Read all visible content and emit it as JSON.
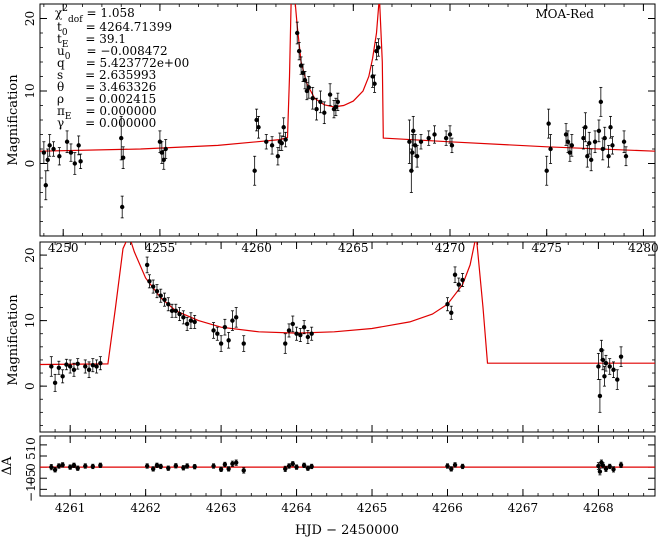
{
  "chart_data": [
    {
      "type": "scatter",
      "panel": "top",
      "title": "MOA-Red",
      "ylabel": "Magnification",
      "xlabel": "",
      "xlim": [
        4248.8,
        4280.6
      ],
      "ylim": [
        -10,
        22
      ],
      "xticks": [
        4250,
        4255,
        4260,
        4265,
        4270,
        4275,
        4280
      ],
      "yticks": [
        0,
        10,
        20
      ],
      "params": [
        {
          "name": "χ²/dof",
          "value": "1.058"
        },
        {
          "name": "t0",
          "value": "4264.71399"
        },
        {
          "name": "tE",
          "value": "39.1"
        },
        {
          "name": "u0",
          "value": "−0.008472"
        },
        {
          "name": "q",
          "value": "5.423772e+00"
        },
        {
          "name": "s",
          "value": "2.635993"
        },
        {
          "name": "θ",
          "value": "3.463326"
        },
        {
          "name": "ρ",
          "value": "0.002415"
        },
        {
          "name": "πE",
          "value": "0.000000"
        },
        {
          "name": "γ",
          "value": "0.000000"
        }
      ],
      "param_text": {
        "p0_sym": "χ",
        "p0_sup": "2",
        "p0_sub": "dof",
        "p0_val": "= 1.058",
        "p1_sym": "t",
        "p1_sub": "0",
        "p1_val": "= 4264.71399",
        "p2_sym": "t",
        "p2_sub": "E",
        "p2_val": "= 39.1",
        "p3_sym": "u",
        "p3_sub": "0",
        "p3_val": "= −0.008472",
        "p4_sym": "q",
        "p4_val": "= 5.423772e+00",
        "p5_sym": "s",
        "p5_val": "= 2.635993",
        "p6_sym": "θ",
        "p6_val": "= 3.463326",
        "p7_sym": "ρ",
        "p7_val": "= 0.002415",
        "p8_sym": "π",
        "p8_sub": "E",
        "p8_val": "= 0.000000",
        "p9_sym": "γ",
        "p9_val": "= 0.000000"
      },
      "model": [
        [
          4248.8,
          1.7
        ],
        [
          4254,
          2.0
        ],
        [
          4258,
          2.5
        ],
        [
          4260,
          3.0
        ],
        [
          4261.2,
          3.3
        ],
        [
          4261.6,
          3.6
        ],
        [
          4261.7,
          12
        ],
        [
          4261.8,
          24
        ],
        [
          4262.0,
          22
        ],
        [
          4262.1,
          19
        ],
        [
          4262.3,
          14
        ],
        [
          4262.6,
          11
        ],
        [
          4263.0,
          9
        ],
        [
          4263.5,
          8.1
        ],
        [
          4264.0,
          7.8
        ],
        [
          4264.5,
          8.0
        ],
        [
          4265.0,
          8.6
        ],
        [
          4265.5,
          10.0
        ],
        [
          4265.8,
          12.0
        ],
        [
          4266.0,
          14.5
        ],
        [
          4266.2,
          18
        ],
        [
          4266.35,
          23
        ],
        [
          4266.5,
          14
        ],
        [
          4266.55,
          3.5
        ],
        [
          4270,
          3.0
        ],
        [
          4275,
          2.3
        ],
        [
          4280.6,
          1.7
        ]
      ],
      "points": [
        [
          4249.0,
          1.5,
          1.5
        ],
        [
          4249.1,
          -3,
          2
        ],
        [
          4249.2,
          0.5,
          1.5
        ],
        [
          4249.3,
          2.5,
          1.5
        ],
        [
          4249.5,
          2.0,
          1.0
        ],
        [
          4249.8,
          1.0,
          1.2
        ],
        [
          4250.2,
          3.0,
          1.5
        ],
        [
          4250.4,
          1.5,
          1.2
        ],
        [
          4250.6,
          0.0,
          1.5
        ],
        [
          4250.8,
          2.5,
          1.3
        ],
        [
          4250.9,
          0.3,
          1.0
        ],
        [
          4253.0,
          3.5,
          3.0
        ],
        [
          4253.05,
          -6,
          1.5
        ],
        [
          4253.1,
          0.8,
          1.5
        ],
        [
          4255.0,
          3.0,
          1.5
        ],
        [
          4255.1,
          1.5,
          1.5
        ],
        [
          4255.2,
          0.5,
          1.3
        ],
        [
          4255.3,
          2.0,
          1.3
        ],
        [
          4259.9,
          -1,
          2
        ],
        [
          4260.0,
          6.0,
          1.5
        ],
        [
          4260.1,
          5.0,
          1.5
        ],
        [
          4260.5,
          3.0,
          1.0
        ],
        [
          4260.8,
          2.5,
          1.2
        ],
        [
          4261.1,
          1.0,
          1.2
        ],
        [
          4261.2,
          3.0,
          1.2
        ],
        [
          4261.3,
          2.8,
          1.0
        ],
        [
          4261.4,
          5.0,
          1.3
        ],
        [
          4261.5,
          3.3,
          1.0
        ],
        [
          4262.1,
          18,
          1.5
        ],
        [
          4262.2,
          15.5,
          1.2
        ],
        [
          4262.3,
          13.5,
          1.2
        ],
        [
          4262.4,
          12.5,
          1.2
        ],
        [
          4262.5,
          11.5,
          1.2
        ],
        [
          4262.6,
          10.0,
          1.2
        ],
        [
          4262.7,
          10.5,
          1.5
        ],
        [
          4262.9,
          9.0,
          1.5
        ],
        [
          4263.1,
          7.5,
          1.5
        ],
        [
          4263.3,
          8.5,
          1.5
        ],
        [
          4263.5,
          7.0,
          1.5
        ],
        [
          4263.8,
          9.5,
          1.5
        ],
        [
          4264.0,
          7.5,
          1.2
        ],
        [
          4264.1,
          7.8,
          1.2
        ],
        [
          4264.2,
          8.5,
          1.2
        ],
        [
          4266.0,
          12,
          1.5
        ],
        [
          4266.1,
          11,
          1.2
        ],
        [
          4266.2,
          15.5,
          1.2
        ],
        [
          4266.3,
          16,
          1.2
        ],
        [
          4267.9,
          3.0,
          3.0
        ],
        [
          4268.0,
          -1,
          3
        ],
        [
          4268.05,
          1.5,
          2.5
        ],
        [
          4268.1,
          4.5,
          2.0
        ],
        [
          4268.2,
          2.5,
          1.5
        ],
        [
          4268.3,
          1.0,
          1.5
        ],
        [
          4268.5,
          3.0,
          1.0
        ],
        [
          4268.9,
          3.5,
          1.0
        ],
        [
          4269.2,
          4.0,
          1.2
        ],
        [
          4269.8,
          3.5,
          1.0
        ],
        [
          4270.0,
          4.0,
          1.2
        ],
        [
          4270.1,
          2.5,
          1.0
        ],
        [
          4275.0,
          -1,
          2
        ],
        [
          4275.1,
          5.5,
          2.0
        ],
        [
          4275.2,
          2.0,
          2.0
        ],
        [
          4276.0,
          4.0,
          1.5
        ],
        [
          4276.1,
          3.0,
          1.5
        ],
        [
          4276.2,
          1.5,
          1.2
        ],
        [
          4276.3,
          2.5,
          1.5
        ],
        [
          4276.9,
          3.5,
          1.5
        ],
        [
          4277.0,
          5.0,
          2.0
        ],
        [
          4277.1,
          1.0,
          1.5
        ],
        [
          4277.2,
          2.8,
          1.5
        ],
        [
          4277.3,
          0.5,
          1.5
        ],
        [
          4277.5,
          3.0,
          1.5
        ],
        [
          4277.7,
          4.5,
          1.5
        ],
        [
          4277.8,
          8.5,
          2.0
        ],
        [
          4277.9,
          2.0,
          1.5
        ],
        [
          4278.0,
          3.5,
          1.5
        ],
        [
          4278.2,
          1.0,
          1.5
        ],
        [
          4278.3,
          5.0,
          1.5
        ],
        [
          4278.4,
          2.5,
          1.2
        ],
        [
          4279.0,
          3.0,
          1.5
        ],
        [
          4279.1,
          1.0,
          1.3
        ]
      ]
    },
    {
      "type": "scatter",
      "panel": "middle",
      "ylabel": "Magnification",
      "xlabel": "",
      "xlim": [
        4260.6,
        4268.75
      ],
      "ylim": [
        -7,
        22
      ],
      "xticks": [
        4261,
        4262,
        4263,
        4264,
        4265,
        4266,
        4267,
        4268
      ],
      "yticks": [
        0,
        10,
        20
      ],
      "model": [
        [
          4260.6,
          3.3
        ],
        [
          4261.5,
          3.4
        ],
        [
          4261.6,
          12
        ],
        [
          4261.7,
          21
        ],
        [
          4261.78,
          23
        ],
        [
          4261.85,
          20.5
        ],
        [
          4262.0,
          16.5
        ],
        [
          4262.2,
          13.5
        ],
        [
          4262.4,
          11.5
        ],
        [
          4262.7,
          10.0
        ],
        [
          4263.0,
          9.0
        ],
        [
          4263.5,
          8.3
        ],
        [
          4264.0,
          8.1
        ],
        [
          4264.5,
          8.3
        ],
        [
          4265.0,
          8.8
        ],
        [
          4265.5,
          9.8
        ],
        [
          4265.8,
          11.0
        ],
        [
          4266.0,
          12.5
        ],
        [
          4266.2,
          15.5
        ],
        [
          4266.3,
          18.5
        ],
        [
          4266.38,
          23
        ],
        [
          4266.47,
          12
        ],
        [
          4266.53,
          3.5
        ],
        [
          4267.0,
          3.5
        ],
        [
          4268.75,
          3.5
        ]
      ],
      "points": [
        [
          4260.75,
          3.0,
          1.5
        ],
        [
          4260.8,
          0.5,
          1.3
        ],
        [
          4260.85,
          2.8,
          1.0
        ],
        [
          4260.9,
          1.5,
          1.0
        ],
        [
          4260.95,
          3.3,
          0.8
        ],
        [
          4261.0,
          3.0,
          1.0
        ],
        [
          4261.05,
          2.5,
          1.0
        ],
        [
          4261.1,
          3.4,
          0.8
        ],
        [
          4261.2,
          3.0,
          1.0
        ],
        [
          4261.25,
          2.5,
          1.2
        ],
        [
          4261.3,
          3.2,
          1.0
        ],
        [
          4261.35,
          3.0,
          1.0
        ],
        [
          4261.4,
          3.5,
          1.0
        ],
        [
          4262.02,
          18.5,
          1.2
        ],
        [
          4262.05,
          16.0,
          1.0
        ],
        [
          4262.1,
          15.2,
          1.0
        ],
        [
          4262.15,
          14.5,
          1.0
        ],
        [
          4262.2,
          13.8,
          1.0
        ],
        [
          4262.25,
          13.2,
          1.0
        ],
        [
          4262.3,
          12.5,
          1.0
        ],
        [
          4262.35,
          11.5,
          1.0
        ],
        [
          4262.4,
          11.5,
          1.0
        ],
        [
          4262.45,
          11.0,
          1.0
        ],
        [
          4262.5,
          10.5,
          1.0
        ],
        [
          4262.55,
          9.5,
          1.0
        ],
        [
          4262.6,
          10.0,
          1.2
        ],
        [
          4262.65,
          9.8,
          1.0
        ],
        [
          4262.9,
          8.5,
          1.2
        ],
        [
          4262.95,
          8.0,
          1.0
        ],
        [
          4263.0,
          6.5,
          1.2
        ],
        [
          4263.05,
          9.0,
          1.2
        ],
        [
          4263.1,
          7.0,
          1.2
        ],
        [
          4263.15,
          10.0,
          1.5
        ],
        [
          4263.2,
          10.5,
          1.5
        ],
        [
          4263.3,
          6.5,
          1.2
        ],
        [
          4263.85,
          6.5,
          1.5
        ],
        [
          4263.9,
          8.5,
          1.0
        ],
        [
          4263.95,
          9.5,
          1.2
        ],
        [
          4264.0,
          8.0,
          1.0
        ],
        [
          4264.05,
          7.8,
          1.0
        ],
        [
          4264.1,
          9.0,
          1.0
        ],
        [
          4264.15,
          7.5,
          1.0
        ],
        [
          4264.2,
          8.0,
          1.0
        ],
        [
          4266.0,
          12.5,
          1.0
        ],
        [
          4266.05,
          11.2,
          1.0
        ],
        [
          4266.1,
          17.0,
          1.2
        ],
        [
          4266.15,
          15.5,
          1.0
        ],
        [
          4266.2,
          16.2,
          1.0
        ],
        [
          4268.0,
          3.0,
          2.0
        ],
        [
          4268.02,
          -1.5,
          2.5
        ],
        [
          4268.04,
          5.5,
          1.5
        ],
        [
          4268.06,
          4.0,
          1.5
        ],
        [
          4268.08,
          1.5,
          1.5
        ],
        [
          4268.1,
          3.5,
          1.2
        ],
        [
          4268.15,
          3.0,
          1.2
        ],
        [
          4268.2,
          2.5,
          1.2
        ],
        [
          4268.25,
          1.0,
          1.5
        ],
        [
          4268.3,
          4.5,
          1.5
        ]
      ]
    },
    {
      "type": "scatter",
      "panel": "residuals",
      "ylabel": "ΔA",
      "xlabel": "HJD − 2450000",
      "xlim": [
        4260.6,
        4268.75
      ],
      "ylim": [
        -13,
        14
      ],
      "xticks": [
        4261,
        4262,
        4263,
        4264,
        4265,
        4266,
        4267,
        4268
      ],
      "yticks": [
        -10,
        -5,
        0,
        5,
        10
      ],
      "ytick_labels": [
        "−10",
        "−5",
        "0",
        "5",
        "10"
      ],
      "model": [
        [
          4260.6,
          0
        ],
        [
          4268.75,
          0
        ]
      ],
      "points": [
        [
          4260.75,
          0.0,
          1.2
        ],
        [
          4260.8,
          -1.2,
          1.0
        ],
        [
          4260.85,
          0.5,
          1.0
        ],
        [
          4260.9,
          1.0,
          1.0
        ],
        [
          4261.0,
          0.0,
          1.0
        ],
        [
          4261.05,
          0.8,
          1.0
        ],
        [
          4261.1,
          -0.5,
          1.0
        ],
        [
          4261.2,
          0.5,
          1.0
        ],
        [
          4261.3,
          0.3,
          1.0
        ],
        [
          4261.4,
          0.8,
          1.0
        ],
        [
          4262.02,
          0.5,
          1.0
        ],
        [
          4262.1,
          -0.8,
          1.0
        ],
        [
          4262.15,
          0.8,
          1.0
        ],
        [
          4262.2,
          0.3,
          1.0
        ],
        [
          4262.3,
          -0.5,
          1.0
        ],
        [
          4262.4,
          0.6,
          1.0
        ],
        [
          4262.5,
          -0.3,
          1.0
        ],
        [
          4262.55,
          0.5,
          1.0
        ],
        [
          4262.65,
          0.2,
          1.0
        ],
        [
          4262.9,
          0.5,
          1.0
        ],
        [
          4263.0,
          -1.0,
          1.0
        ],
        [
          4263.05,
          1.2,
          1.0
        ],
        [
          4263.1,
          -0.8,
          1.0
        ],
        [
          4263.15,
          1.5,
          1.2
        ],
        [
          4263.2,
          2.0,
          1.2
        ],
        [
          4263.3,
          -1.5,
          1.2
        ],
        [
          4263.85,
          -0.8,
          1.2
        ],
        [
          4263.9,
          0.5,
          1.0
        ],
        [
          4263.95,
          1.5,
          1.0
        ],
        [
          4264.0,
          0.0,
          1.0
        ],
        [
          4264.1,
          0.8,
          1.0
        ],
        [
          4264.15,
          -0.5,
          1.0
        ],
        [
          4264.2,
          0.3,
          1.0
        ],
        [
          4266.0,
          0.5,
          1.0
        ],
        [
          4266.05,
          -0.8,
          1.0
        ],
        [
          4266.1,
          1.0,
          1.0
        ],
        [
          4266.2,
          0.3,
          1.0
        ],
        [
          4268.0,
          0.5,
          1.5
        ],
        [
          4268.02,
          -2.0,
          1.5
        ],
        [
          4268.04,
          2.0,
          1.2
        ],
        [
          4268.06,
          0.8,
          1.2
        ],
        [
          4268.1,
          -0.8,
          1.2
        ],
        [
          4268.15,
          0.3,
          1.0
        ],
        [
          4268.2,
          -1.0,
          1.2
        ],
        [
          4268.3,
          1.0,
          1.2
        ]
      ]
    }
  ],
  "colors": {
    "model": "#e00000",
    "points": "#000000",
    "axis": "#000000"
  }
}
